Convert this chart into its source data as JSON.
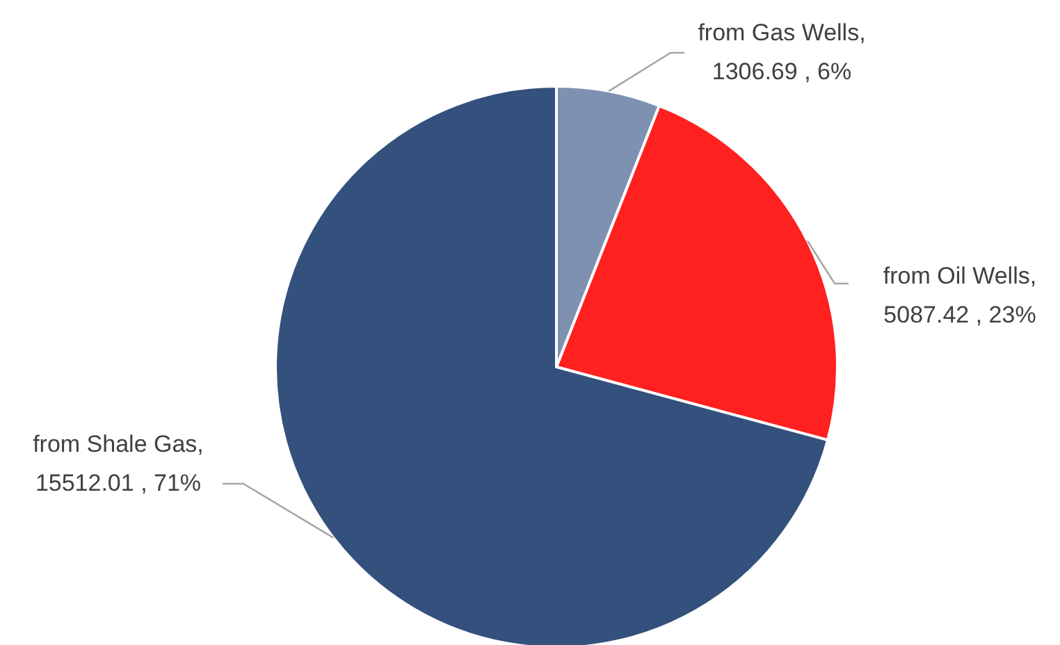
{
  "chart_data": {
    "type": "pie",
    "categories": [
      "from Gas Wells",
      "from Oil Wells",
      "from Shale Gas"
    ],
    "values": [
      1306.69,
      5087.42,
      15512.01
    ],
    "value_labels": [
      ", 1306.69 , 6%",
      ", 5087.42 , 23%",
      ", 15512.01 , 71%"
    ],
    "colors": [
      "#7f91b0",
      "#ff2020",
      "#34507d"
    ],
    "legend": false
  }
}
